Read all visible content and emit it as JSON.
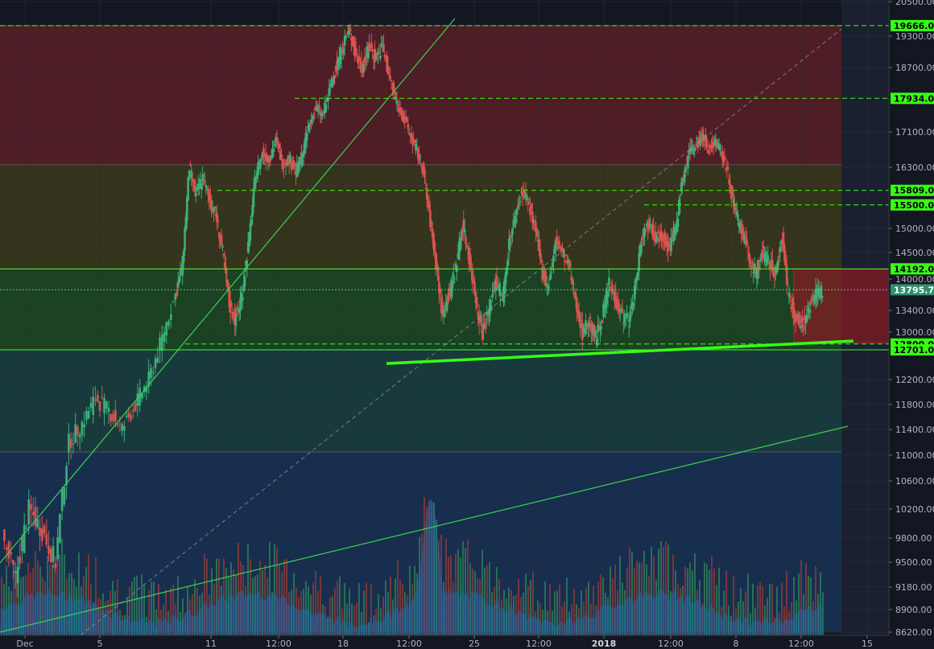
{
  "colors": {
    "background": "#131722",
    "grid": "#2a2e39",
    "candle_up": "#3fae7a",
    "candle_down": "#d9534f",
    "volume_up": "#2e7d5b",
    "volume_down": "#8b3a3a",
    "volume_area": "#1f6fb2",
    "trendline": "#39d353",
    "level_label_bg": "#39ff14",
    "last_price_bg": "#2f8f6a",
    "fib_zone_top": "#5a1e27",
    "fib_zone_upper_mid": "#3c3a1c",
    "fib_zone_mid": "#1d4a22",
    "fib_zone_lower_mid": "#1b4141",
    "fib_zone_bottom": "#1a3356",
    "forecast_box": "#8b1a22"
  },
  "chart_data": {
    "type": "candlestick",
    "y_axis": {
      "range": [
        8620,
        20500
      ],
      "ticks": [
        20500,
        19300,
        18700,
        17100,
        16300,
        15000,
        14500,
        14000,
        13400,
        13000,
        12200,
        11800,
        11400,
        11000,
        10600,
        10200,
        9800,
        9500,
        9180,
        8900,
        8620
      ]
    },
    "x_axis": {
      "ticks": [
        {
          "label": "Dec",
          "bold": false
        },
        {
          "label": "5",
          "bold": false
        },
        {
          "label": "11",
          "bold": false
        },
        {
          "label": "12:00",
          "bold": false
        },
        {
          "label": "18",
          "bold": false
        },
        {
          "label": "12:00",
          "bold": false
        },
        {
          "label": "25",
          "bold": false
        },
        {
          "label": "12:00",
          "bold": false
        },
        {
          "label": "2018",
          "bold": true
        },
        {
          "label": "12:00",
          "bold": false
        },
        {
          "label": "8",
          "bold": false
        },
        {
          "label": "12:00",
          "bold": false
        },
        {
          "label": "15",
          "bold": false
        }
      ]
    },
    "price_levels": [
      {
        "label": "19666.00",
        "value": 19666,
        "style": "dashed"
      },
      {
        "label": "17934.00",
        "value": 17934,
        "style": "dashed"
      },
      {
        "label": "15809.00",
        "value": 15809,
        "style": "dashed"
      },
      {
        "label": "15500.00",
        "value": 15500,
        "style": "dashed"
      },
      {
        "label": "14192.00",
        "value": 14192,
        "style": "solid"
      },
      {
        "label": "12800.00",
        "value": 12800,
        "style": "dashed"
      },
      {
        "label": "12701.00",
        "value": 12701,
        "style": "solid"
      }
    ],
    "last_price": {
      "label": "13795.74",
      "value": 13795.74
    },
    "fib_zones": [
      {
        "from": 16360,
        "to": 19666,
        "color_key": "fib_zone_top"
      },
      {
        "from": 14192,
        "to": 16360,
        "color_key": "fib_zone_upper_mid"
      },
      {
        "from": 12701,
        "to": 14192,
        "color_key": "fib_zone_mid"
      },
      {
        "from": 11050,
        "to": 12701,
        "color_key": "fib_zone_lower_mid"
      },
      {
        "from": 8620,
        "to": 11050,
        "color_key": "fib_zone_bottom"
      }
    ],
    "price_path": [
      [
        0,
        9800
      ],
      [
        2,
        9300
      ],
      [
        4,
        10200
      ],
      [
        6,
        9900
      ],
      [
        8,
        9500
      ],
      [
        10,
        11200
      ],
      [
        12,
        11500
      ],
      [
        14,
        11900
      ],
      [
        16,
        11700
      ],
      [
        18,
        11400
      ],
      [
        20,
        11800
      ],
      [
        22,
        12200
      ],
      [
        24,
        12900
      ],
      [
        26,
        13700
      ],
      [
        27,
        14300
      ],
      [
        28,
        16300
      ],
      [
        29,
        15700
      ],
      [
        30,
        16100
      ],
      [
        31,
        15600
      ],
      [
        32,
        15300
      ],
      [
        33,
        14500
      ],
      [
        34,
        13500
      ],
      [
        35,
        13200
      ],
      [
        36,
        13800
      ],
      [
        37,
        14800
      ],
      [
        38,
        16200
      ],
      [
        39,
        16600
      ],
      [
        40,
        16500
      ],
      [
        41,
        16900
      ],
      [
        42,
        16400
      ],
      [
        43,
        16500
      ],
      [
        44,
        16200
      ],
      [
        45,
        16600
      ],
      [
        46,
        17300
      ],
      [
        47,
        17700
      ],
      [
        48,
        17500
      ],
      [
        49,
        18100
      ],
      [
        50,
        18700
      ],
      [
        51,
        19100
      ],
      [
        52,
        19500
      ],
      [
        53,
        18900
      ],
      [
        54,
        18700
      ],
      [
        55,
        19100
      ],
      [
        56,
        18900
      ],
      [
        57,
        19100
      ],
      [
        58,
        18500
      ],
      [
        59,
        17900
      ],
      [
        60,
        17500
      ],
      [
        61,
        17100
      ],
      [
        62,
        16700
      ],
      [
        63,
        16300
      ],
      [
        64,
        15300
      ],
      [
        65,
        14300
      ],
      [
        66,
        13300
      ],
      [
        67,
        13700
      ],
      [
        68,
        14200
      ],
      [
        69,
        15100
      ],
      [
        70,
        14400
      ],
      [
        71,
        13600
      ],
      [
        72,
        13000
      ],
      [
        73,
        13400
      ],
      [
        74,
        14000
      ],
      [
        75,
        13600
      ],
      [
        76,
        14700
      ],
      [
        77,
        15300
      ],
      [
        78,
        15800
      ],
      [
        79,
        15500
      ],
      [
        80,
        14900
      ],
      [
        81,
        14100
      ],
      [
        82,
        13900
      ],
      [
        83,
        14700
      ],
      [
        84,
        14500
      ],
      [
        85,
        14200
      ],
      [
        86,
        13600
      ],
      [
        87,
        13000
      ],
      [
        88,
        13200
      ],
      [
        89,
        12900
      ],
      [
        90,
        13300
      ],
      [
        91,
        13900
      ],
      [
        92,
        13600
      ],
      [
        93,
        13300
      ],
      [
        94,
        13200
      ],
      [
        95,
        13900
      ],
      [
        96,
        14900
      ],
      [
        97,
        15100
      ],
      [
        98,
        14800
      ],
      [
        99,
        14900
      ],
      [
        100,
        14600
      ],
      [
        101,
        15000
      ],
      [
        102,
        16000
      ],
      [
        103,
        16600
      ],
      [
        104,
        16800
      ],
      [
        105,
        17000
      ],
      [
        106,
        16700
      ],
      [
        107,
        16900
      ],
      [
        108,
        16600
      ],
      [
        109,
        16000
      ],
      [
        110,
        15300
      ],
      [
        111,
        14900
      ],
      [
        112,
        14400
      ],
      [
        113,
        14100
      ],
      [
        114,
        14500
      ],
      [
        115,
        14300
      ],
      [
        116,
        14100
      ],
      [
        117,
        14800
      ],
      [
        118,
        13600
      ],
      [
        119,
        13300
      ],
      [
        120,
        13100
      ],
      [
        121,
        13500
      ],
      [
        122,
        13700
      ],
      [
        123,
        13800
      ]
    ],
    "trendlines": [
      {
        "name": "steep_support",
        "style": "solid"
      },
      {
        "name": "long_support",
        "style": "solid"
      },
      {
        "name": "neckline",
        "style": "thick"
      },
      {
        "name": "diagonal",
        "style": "dashed"
      }
    ]
  }
}
